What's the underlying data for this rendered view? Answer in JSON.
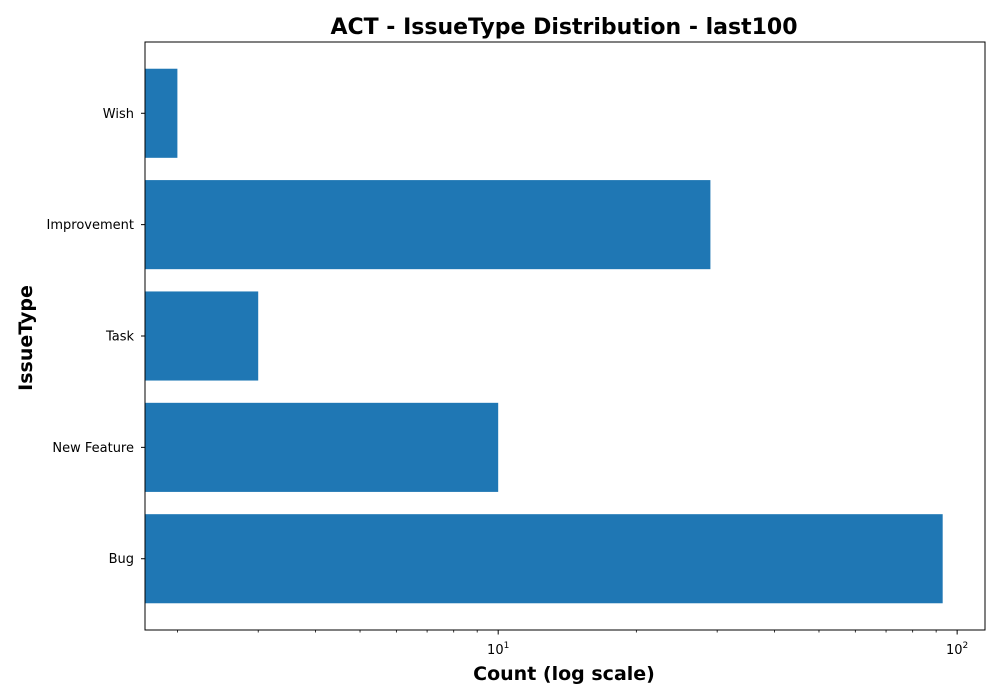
{
  "chart_data": {
    "type": "bar",
    "orientation": "horizontal",
    "title": "ACT - IssueType Distribution - last100",
    "xlabel": "Count (log scale)",
    "ylabel": "IssueType",
    "x_scale": "log",
    "xlim": [
      1.7,
      115
    ],
    "categories": [
      "Bug",
      "New Feature",
      "Task",
      "Improvement",
      "Wish"
    ],
    "values": [
      93,
      10,
      3,
      29,
      2
    ],
    "x_tick_labels": [
      {
        "value": 10,
        "base": "10",
        "exp": "1"
      },
      {
        "value": 100,
        "base": "10",
        "exp": "2"
      }
    ],
    "bar_color": "#1f77b4",
    "grid": false,
    "legend": "none"
  }
}
